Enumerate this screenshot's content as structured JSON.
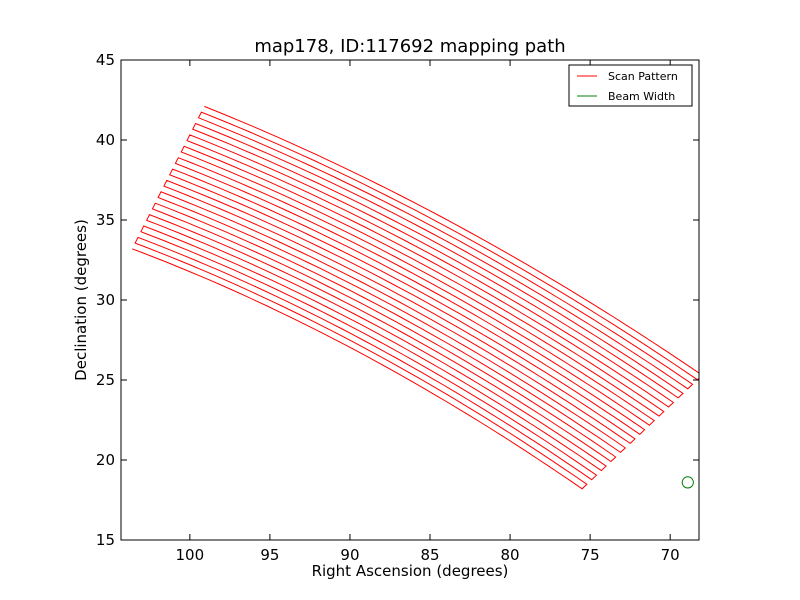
{
  "chart_data": {
    "type": "line",
    "title": "map178, ID:117692 mapping path",
    "xlabel": "Right Ascension (degrees)",
    "ylabel": "Declination (degrees)",
    "xlim": [
      104.3,
      68.2
    ],
    "ylim": [
      15,
      45
    ],
    "x_ticks": [
      100,
      95,
      90,
      85,
      80,
      75,
      70
    ],
    "y_ticks": [
      15,
      20,
      25,
      30,
      35,
      40,
      45
    ],
    "grid": false,
    "legend_position": "top-right",
    "series": [
      {
        "name": "Scan Pattern",
        "color": "#ff0000",
        "pattern": {
          "rows": 26,
          "row_start_ra": [
            103.6,
            99.1
          ],
          "row_start_dec": [
            33.2,
            42.1
          ],
          "row_end_ra": [
            75.5,
            68.0
          ],
          "row_end_dec": [
            18.2,
            25.3
          ],
          "row_mid_bulge_dec": 1.1
        }
      },
      {
        "name": "Beam Width",
        "color": "#008000",
        "marker": "circle",
        "center": [
          68.9,
          18.6
        ],
        "radius_deg": 0.35
      }
    ]
  }
}
